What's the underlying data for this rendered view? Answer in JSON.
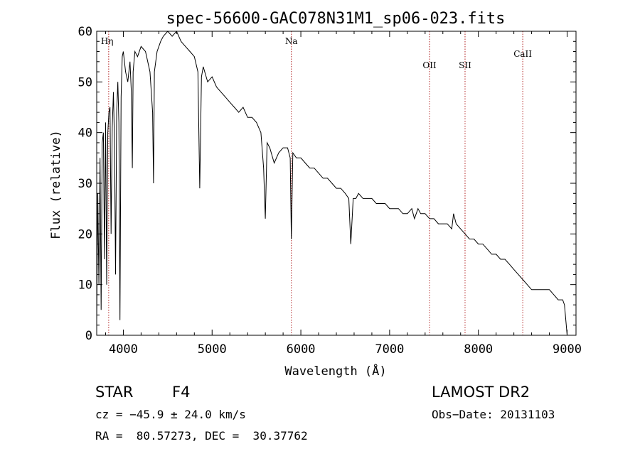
{
  "chart_data": {
    "type": "line",
    "title": "spec-56600-GAC078N31M1_sp06-023.fits",
    "xlabel": "Wavelength (Å)",
    "ylabel": "Flux (relative)",
    "xlim": [
      3700,
      9100
    ],
    "ylim": [
      0,
      60
    ],
    "xticks": [
      4000,
      5000,
      6000,
      7000,
      8000,
      9000
    ],
    "yticks": [
      0,
      10,
      20,
      30,
      40,
      50,
      60
    ],
    "grid": false,
    "line_color": "#000000",
    "marker_color": "#b22222",
    "lines": [
      {
        "label": "Hη",
        "x": 3835
      },
      {
        "label": "Na",
        "x": 5893
      },
      {
        "label": "OII",
        "x": 7450
      },
      {
        "label": "SII",
        "x": 7850
      },
      {
        "label": "CaII",
        "x": 8500
      }
    ],
    "series": [
      {
        "x": [
          3700,
          3712,
          3725,
          3738,
          3750,
          3762,
          3775,
          3788,
          3800,
          3812,
          3825,
          3838,
          3850,
          3862,
          3875,
          3888,
          3900,
          3912,
          3925,
          3938,
          3950,
          3962,
          3975,
          3988,
          4000,
          4025,
          4050,
          4075,
          4090,
          4101,
          4110,
          4130,
          4160,
          4200,
          4250,
          4300,
          4330,
          4340,
          4350,
          4380,
          4420,
          4450,
          4500,
          4550,
          4600,
          4650,
          4700,
          4750,
          4800,
          4840,
          4861,
          4880,
          4900,
          4950,
          5000,
          5050,
          5100,
          5150,
          5200,
          5250,
          5300,
          5350,
          5400,
          5450,
          5500,
          5550,
          5580,
          5600,
          5620,
          5650,
          5700,
          5750,
          5800,
          5850,
          5880,
          5893,
          5910,
          5950,
          6000,
          6050,
          6100,
          6150,
          6200,
          6250,
          6300,
          6350,
          6400,
          6450,
          6500,
          6540,
          6563,
          6590,
          6620,
          6650,
          6700,
          6750,
          6800,
          6850,
          6900,
          6950,
          7000,
          7050,
          7100,
          7150,
          7200,
          7250,
          7280,
          7300,
          7320,
          7350,
          7400,
          7450,
          7500,
          7550,
          7600,
          7650,
          7700,
          7720,
          7750,
          7800,
          7850,
          7900,
          7950,
          8000,
          8050,
          8100,
          8150,
          8200,
          8250,
          8300,
          8350,
          8400,
          8450,
          8500,
          8550,
          8600,
          8650,
          8700,
          8750,
          8800,
          8850,
          8900,
          8950,
          8970,
          8990,
          9000
        ],
        "y": [
          3,
          28,
          10,
          35,
          5,
          38,
          40,
          15,
          42,
          10,
          40,
          44,
          45,
          20,
          41,
          48,
          38,
          12,
          44,
          50,
          42,
          3,
          47,
          55,
          56,
          52,
          50,
          54,
          48,
          33,
          52,
          56,
          55,
          57,
          56,
          52,
          44,
          30,
          52,
          56,
          58,
          59,
          60,
          59,
          60,
          58,
          57,
          56,
          55,
          52,
          29,
          51,
          53,
          50,
          51,
          49,
          48,
          47,
          46,
          45,
          44,
          45,
          43,
          43,
          42,
          40,
          33,
          23,
          38,
          37,
          34,
          36,
          37,
          37,
          35,
          19,
          36,
          35,
          35,
          34,
          33,
          33,
          32,
          31,
          31,
          30,
          29,
          29,
          28,
          27,
          18,
          27,
          27,
          28,
          27,
          27,
          27,
          26,
          26,
          26,
          25,
          25,
          25,
          24,
          24,
          25,
          23,
          24,
          25,
          24,
          24,
          23,
          23,
          22,
          22,
          22,
          21,
          24,
          22,
          21,
          20,
          19,
          19,
          18,
          18,
          17,
          16,
          16,
          15,
          15,
          14,
          13,
          12,
          11,
          10,
          9,
          9,
          9,
          9,
          9,
          8,
          7,
          7,
          6,
          2,
          0
        ]
      }
    ]
  },
  "info": {
    "object_type": "STAR",
    "subclass": "F4",
    "survey": "LAMOST DR2",
    "redshift": "cz = −45.9 ± 24.0 km/s",
    "obs_date": "Obs−Date: 20131103",
    "coords": "RA =  80.57273, DEC =  30.37762"
  }
}
